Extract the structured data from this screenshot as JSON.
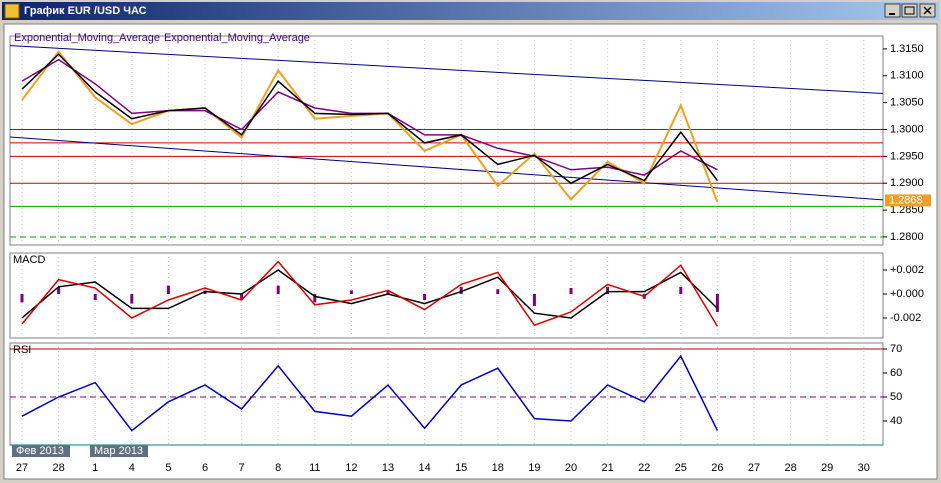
{
  "window": {
    "title": "График EUR /USD ЧАС"
  },
  "chart_data": [
    {
      "type": "line",
      "series": [
        {
          "color": "#f0a020",
          "values": [
            1.3055,
            1.3145,
            1.306,
            1.301,
            1.3035,
            1.304,
            1.2985,
            1.311,
            1.302,
            1.3025,
            1.303,
            1.296,
            1.299,
            1.2895,
            1.2955,
            1.287,
            1.294,
            1.29,
            1.3045,
            1.2865,
            null,
            null,
            null,
            null
          ]
        },
        {
          "name": "Exponential_Moving_Average",
          "color": "#800080",
          "values": [
            1.309,
            1.313,
            1.3085,
            1.303,
            1.3035,
            1.3035,
            1.3,
            1.307,
            1.304,
            1.303,
            1.303,
            1.299,
            1.299,
            1.2965,
            1.295,
            1.2925,
            1.293,
            1.2915,
            1.296,
            1.2925,
            null,
            null,
            null,
            null
          ]
        },
        {
          "name": "Exponential_Moving_Average",
          "color": "#000000",
          "values": [
            1.3075,
            1.314,
            1.307,
            1.302,
            1.3035,
            1.304,
            1.299,
            1.309,
            1.303,
            1.3028,
            1.303,
            1.2975,
            1.299,
            1.2935,
            1.2952,
            1.29,
            1.2935,
            1.2905,
            1.2995,
            1.2905,
            null,
            null,
            null,
            null
          ]
        }
      ],
      "ylim": [
        1.2785,
        1.3174
      ],
      "yticks": [
        {
          "value": 1.315,
          "label": "1.3150"
        },
        {
          "value": 1.31,
          "label": "1.3100"
        },
        {
          "value": 1.305,
          "label": "1.3050"
        },
        {
          "value": 1.3,
          "label": "1.3000"
        },
        {
          "value": 1.295,
          "label": "1.2950"
        },
        {
          "value": 1.29,
          "label": "1.2900"
        },
        {
          "value": 1.285,
          "label": "1.2850"
        },
        {
          "value": 1.28,
          "label": "1.2800"
        }
      ],
      "levels": [
        {
          "value": 1.3,
          "color": "#cc0000"
        },
        {
          "value": 1.2975,
          "color": "#cc0000"
        },
        {
          "value": 1.295,
          "color": "#cc0000"
        },
        {
          "value": 1.29,
          "color": "#cc0000"
        },
        {
          "value": 1.2857,
          "color": "#00a000"
        },
        {
          "value": 1.28,
          "color": "#00a000",
          "dash": true
        }
      ],
      "trend_lines": [
        {
          "color": "#000080",
          "values": [
            1.3156,
            1.3067
          ]
        },
        {
          "color": "#000080",
          "values": [
            1.2986,
            1.2869
          ]
        }
      ],
      "last_price": 1.2868,
      "grid": true
    },
    {
      "type": "line",
      "title": "MACD",
      "series": [
        {
          "kind": "bar",
          "color": "#800080",
          "values": [
            -0.0007,
            0.0006,
            -0.0005,
            -0.0008,
            0.0007,
            0.0003,
            -0.0005,
            0.0007,
            -0.0007,
            0.0003,
            0.0003,
            -0.0005,
            0.0006,
            0.0004,
            -0.001,
            0.0005,
            0.0006,
            -0.0004,
            0.0006,
            -0.0015,
            null,
            null,
            null,
            null
          ]
        },
        {
          "color": "#000000",
          "values": [
            -0.002,
            0.0006,
            0.001,
            -0.0012,
            -0.0012,
            0.0002,
            0.0,
            0.002,
            -0.0002,
            -0.0008,
            0.0,
            -0.0008,
            0.0002,
            0.0014,
            -0.0016,
            -0.002,
            0.0002,
            0.0002,
            0.0018,
            -0.0012,
            null,
            null,
            null,
            null
          ]
        },
        {
          "color": "#dd0000",
          "values": [
            -0.0025,
            0.0012,
            0.0005,
            -0.002,
            -0.0005,
            0.0005,
            -0.0005,
            0.0027,
            -0.0009,
            -0.0005,
            0.0003,
            -0.0013,
            0.0008,
            0.0018,
            -0.0026,
            -0.0015,
            0.0008,
            -0.0002,
            0.0024,
            -0.0027,
            null,
            null,
            null,
            null
          ]
        }
      ],
      "ylim": [
        -0.00367,
        0.00342
      ],
      "yticks": [
        {
          "value": 0.002,
          "label": "+0.002"
        },
        {
          "value": 0,
          "label": "+0.000"
        },
        {
          "value": -0.002,
          "label": "-0.002"
        }
      ],
      "grid": true
    },
    {
      "type": "line",
      "title": "RSI",
      "categories": [
        "27",
        "28",
        "1",
        "4",
        "5",
        "6",
        "7",
        "8",
        "11",
        "12",
        "13",
        "14",
        "15",
        "18",
        "19",
        "20",
        "21",
        "22",
        "25",
        "26",
        "27",
        "28",
        "29",
        "30"
      ],
      "period_labels": [
        "Фев 2013",
        "Мар 2013"
      ],
      "series": [
        {
          "color": "#0000c0",
          "values": [
            42,
            50,
            56,
            36,
            48,
            55,
            45,
            63,
            44,
            42,
            55,
            37,
            55,
            62,
            41,
            40,
            55,
            48,
            67,
            36,
            null,
            null,
            null,
            null
          ]
        }
      ],
      "ylim": [
        30,
        72.5
      ],
      "yticks": [
        70,
        60,
        50,
        40
      ],
      "levels": [
        {
          "value": 70,
          "color": "#cc0000"
        },
        {
          "value": 50,
          "color": "#800080",
          "dash": true
        },
        {
          "value": 30,
          "color": "#008080"
        }
      ],
      "grid": true
    }
  ]
}
